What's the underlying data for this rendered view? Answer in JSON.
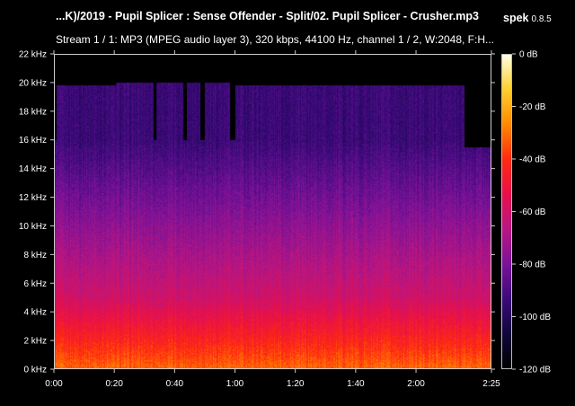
{
  "header": {
    "file_title": "...K)/2019 - Pupil Splicer : Sense Offender - Split/02. Pupil Splicer - Crusher.mp3",
    "app_name": "spek",
    "app_version": "0.8.5",
    "stream_info": "Stream 1 / 1: MP3 (MPEG audio layer 3), 320 kbps, 44100 Hz, channel 1 / 2, W:2048, F:H..."
  },
  "chart_data": {
    "type": "heatmap",
    "title": "...K)/2019 - Pupil Splicer : Sense Offender - Split/02. Pupil Splicer - Crusher.mp3",
    "subtitle": "Stream 1 / 1: MP3 (MPEG audio layer 3), 320 kbps, 44100 Hz, channel 1 / 2, W:2048, F:H...",
    "x_axis": {
      "unit": "seconds",
      "range": [
        0,
        145
      ],
      "ticks": [
        {
          "value": 0,
          "label": "0:00"
        },
        {
          "value": 20,
          "label": "0:20"
        },
        {
          "value": 40,
          "label": "0:40"
        },
        {
          "value": 60,
          "label": "1:00"
        },
        {
          "value": 80,
          "label": "1:20"
        },
        {
          "value": 100,
          "label": "1:40"
        },
        {
          "value": 120,
          "label": "2:00"
        },
        {
          "value": 145,
          "label": "2:25"
        }
      ]
    },
    "y_axis": {
      "unit": "kHz",
      "range": [
        0,
        22
      ],
      "ticks": [
        {
          "value": 0,
          "label": "0 kHz"
        },
        {
          "value": 2,
          "label": "2 kHz"
        },
        {
          "value": 4,
          "label": "4 kHz"
        },
        {
          "value": 6,
          "label": "6 kHz"
        },
        {
          "value": 8,
          "label": "8 kHz"
        },
        {
          "value": 10,
          "label": "10 kHz"
        },
        {
          "value": 12,
          "label": "12 kHz"
        },
        {
          "value": 14,
          "label": "14 kHz"
        },
        {
          "value": 16,
          "label": "16 kHz"
        },
        {
          "value": 18,
          "label": "18 kHz"
        },
        {
          "value": 20,
          "label": "20 kHz"
        },
        {
          "value": 22,
          "label": "22 kHz"
        }
      ]
    },
    "color_scale": {
      "unit": "dB",
      "range": [
        -120,
        0
      ],
      "stops": [
        "#000000",
        "#10063a",
        "#3a0a7a",
        "#7a1298",
        "#b81682",
        "#e8104a",
        "#ff2a10",
        "#ff8a00",
        "#ffd030",
        "#ffffe8"
      ],
      "ticks": [
        {
          "value": 0,
          "label": "0 dB"
        },
        {
          "value": -20,
          "label": "-20 dB"
        },
        {
          "value": -40,
          "label": "-40 dB"
        },
        {
          "value": -60,
          "label": "-60 dB"
        },
        {
          "value": -80,
          "label": "-80 dB"
        },
        {
          "value": -100,
          "label": "-100 dB"
        },
        {
          "value": -120,
          "label": "-120 dB"
        }
      ]
    },
    "grid": false,
    "content_segments": [
      {
        "start": 0,
        "end": 136,
        "cutoff_khz": 16
      },
      {
        "start": 136,
        "end": 145,
        "cutoff_khz": 15.5
      }
    ],
    "high_band_bursts": [
      {
        "start": 1,
        "end": 20.5,
        "top_khz": 19.8
      },
      {
        "start": 20.5,
        "end": 33,
        "top_khz": 20
      },
      {
        "start": 34,
        "end": 43,
        "top_khz": 20
      },
      {
        "start": 44,
        "end": 48.5,
        "top_khz": 20
      },
      {
        "start": 50,
        "end": 58.5,
        "top_khz": 20
      },
      {
        "start": 60,
        "end": 100,
        "top_khz": 19.8
      },
      {
        "start": 100,
        "end": 136,
        "top_khz": 19.8
      }
    ]
  }
}
